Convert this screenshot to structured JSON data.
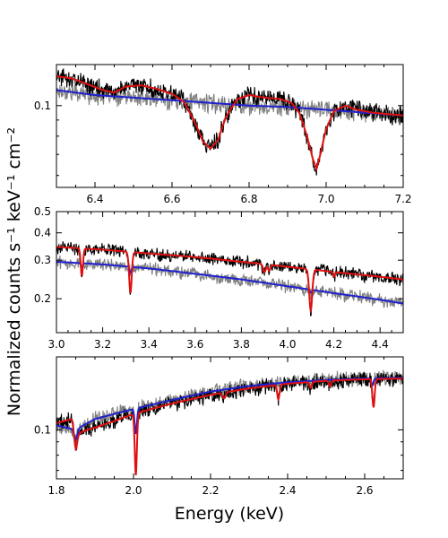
{
  "figure": {
    "ylabel": "Normalized counts s⁻¹ keV⁻¹ cm⁻²",
    "xlabel": "Energy (keV)"
  },
  "colors": {
    "data_main": "#000000",
    "data_alt": "#808080",
    "model_main": "#e01010",
    "model_alt": "#2020d0"
  },
  "chart_data": [
    {
      "type": "line",
      "xlim": [
        6.3,
        7.2
      ],
      "ylim": [
        0.055,
        0.135
      ],
      "yscale": "log",
      "xticks": [
        6.4,
        6.6,
        6.8,
        7.0,
        7.2
      ],
      "xtick_labels": [
        "6.4",
        "6.6",
        "6.8",
        "7.0",
        "7.2"
      ],
      "yticks": [
        0.1
      ],
      "ytick_labels": [
        "0.1"
      ],
      "series": [
        {
          "role": "model_alt",
          "x": [
            6.3,
            6.4,
            6.5,
            6.6,
            6.7,
            6.8,
            6.9,
            7.0,
            7.1,
            7.2
          ],
          "y": [
            0.112,
            0.108,
            0.106,
            0.104,
            0.102,
            0.1,
            0.099,
            0.097,
            0.095,
            0.093
          ]
        },
        {
          "role": "model_main",
          "x": [
            6.3,
            6.34,
            6.38,
            6.42,
            6.45,
            6.48,
            6.52,
            6.56,
            6.6,
            6.63,
            6.66,
            6.68,
            6.7,
            6.72,
            6.74,
            6.77,
            6.8,
            6.84,
            6.88,
            6.91,
            6.93,
            6.95,
            6.965,
            6.975,
            6.985,
            7.0,
            7.02,
            7.05,
            7.08,
            7.12,
            7.16,
            7.2
          ],
          "y": [
            0.124,
            0.122,
            0.117,
            0.112,
            0.11,
            0.115,
            0.116,
            0.113,
            0.109,
            0.103,
            0.088,
            0.077,
            0.073,
            0.078,
            0.092,
            0.105,
            0.108,
            0.106,
            0.105,
            0.102,
            0.095,
            0.08,
            0.068,
            0.063,
            0.07,
            0.084,
            0.096,
            0.1,
            0.097,
            0.095,
            0.094,
            0.093
          ]
        }
      ]
    },
    {
      "type": "line",
      "xlim": [
        3.0,
        4.5
      ],
      "ylim": [
        0.14,
        0.5
      ],
      "yscale": "log",
      "xticks": [
        3.0,
        3.2,
        3.4,
        3.6,
        3.8,
        4.0,
        4.2,
        4.4
      ],
      "xtick_labels": [
        "3.0",
        "3.2",
        "3.4",
        "3.6",
        "3.8",
        "4.0",
        "4.2",
        "4.4"
      ],
      "yticks": [
        0.2,
        0.3,
        0.4,
        0.5
      ],
      "ytick_labels": [
        "0.2",
        "0.3",
        "0.4",
        "0.5"
      ],
      "series": [
        {
          "role": "model_alt",
          "x": [
            3.0,
            3.2,
            3.4,
            3.6,
            3.8,
            4.0,
            4.2,
            4.4,
            4.5
          ],
          "y": [
            0.295,
            0.287,
            0.275,
            0.26,
            0.245,
            0.228,
            0.212,
            0.198,
            0.19
          ],
          "absorption": [
            {
              "center": 3.11,
              "depth": 0.04,
              "width": 0.004
            },
            {
              "center": 3.32,
              "depth": 0.06,
              "width": 0.004
            },
            {
              "center": 4.1,
              "depth": 0.03,
              "width": 0.005
            }
          ]
        },
        {
          "role": "model_main",
          "x": [
            3.0,
            3.2,
            3.4,
            3.6,
            3.8,
            4.0,
            4.2,
            4.4,
            4.5
          ],
          "y": [
            0.345,
            0.335,
            0.322,
            0.31,
            0.295,
            0.28,
            0.265,
            0.252,
            0.245
          ],
          "absorption": [
            {
              "center": 3.11,
              "depth": 0.25,
              "width": 0.005
            },
            {
              "center": 3.32,
              "depth": 0.35,
              "width": 0.006
            },
            {
              "center": 3.9,
              "depth": 0.08,
              "width": 0.006
            },
            {
              "center": 3.92,
              "depth": 0.06,
              "width": 0.005
            },
            {
              "center": 4.1,
              "depth": 0.35,
              "width": 0.007
            },
            {
              "center": 4.2,
              "depth": 0.05,
              "width": 0.004
            }
          ]
        }
      ]
    },
    {
      "type": "line",
      "xlim": [
        1.8,
        2.7
      ],
      "ylim": [
        0.065,
        0.19
      ],
      "yscale": "log",
      "xticks": [
        1.8,
        2.0,
        2.2,
        2.4,
        2.6
      ],
      "xtick_labels": [
        "1.8",
        "2.0",
        "2.2",
        "2.4",
        "2.6"
      ],
      "yticks": [
        0.1
      ],
      "ytick_labels": [
        "0.1"
      ],
      "series": [
        {
          "role": "model_alt",
          "x": [
            1.8,
            1.85,
            1.9,
            2.0,
            2.1,
            2.2,
            2.3,
            2.4,
            2.5,
            2.6,
            2.7
          ],
          "y": [
            0.104,
            0.1,
            0.11,
            0.12,
            0.13,
            0.14,
            0.147,
            0.152,
            0.155,
            0.157,
            0.158
          ],
          "absorption": [
            {
              "center": 1.85,
              "depth": 0.08,
              "width": 0.004
            },
            {
              "center": 2.006,
              "depth": 0.2,
              "width": 0.003
            },
            {
              "center": 2.62,
              "depth": 0.06,
              "width": 0.003
            }
          ]
        },
        {
          "role": "model_main",
          "x": [
            1.8,
            1.84,
            1.85,
            1.88,
            1.9,
            1.95,
            2.0,
            2.1,
            2.2,
            2.3,
            2.4,
            2.5,
            2.6,
            2.7
          ],
          "y": [
            0.106,
            0.11,
            0.096,
            0.1,
            0.102,
            0.108,
            0.115,
            0.126,
            0.136,
            0.144,
            0.15,
            0.154,
            0.156,
            0.157
          ],
          "absorption": [
            {
              "center": 1.85,
              "depth": 0.12,
              "width": 0.004
            },
            {
              "center": 2.006,
              "depth": 0.42,
              "width": 0.003
            },
            {
              "center": 2.235,
              "depth": 0.05,
              "width": 0.004
            },
            {
              "center": 2.376,
              "depth": 0.12,
              "width": 0.003
            },
            {
              "center": 2.46,
              "depth": 0.05,
              "width": 0.003
            },
            {
              "center": 2.51,
              "depth": 0.05,
              "width": 0.003
            },
            {
              "center": 2.623,
              "depth": 0.22,
              "width": 0.003
            }
          ]
        }
      ]
    }
  ]
}
